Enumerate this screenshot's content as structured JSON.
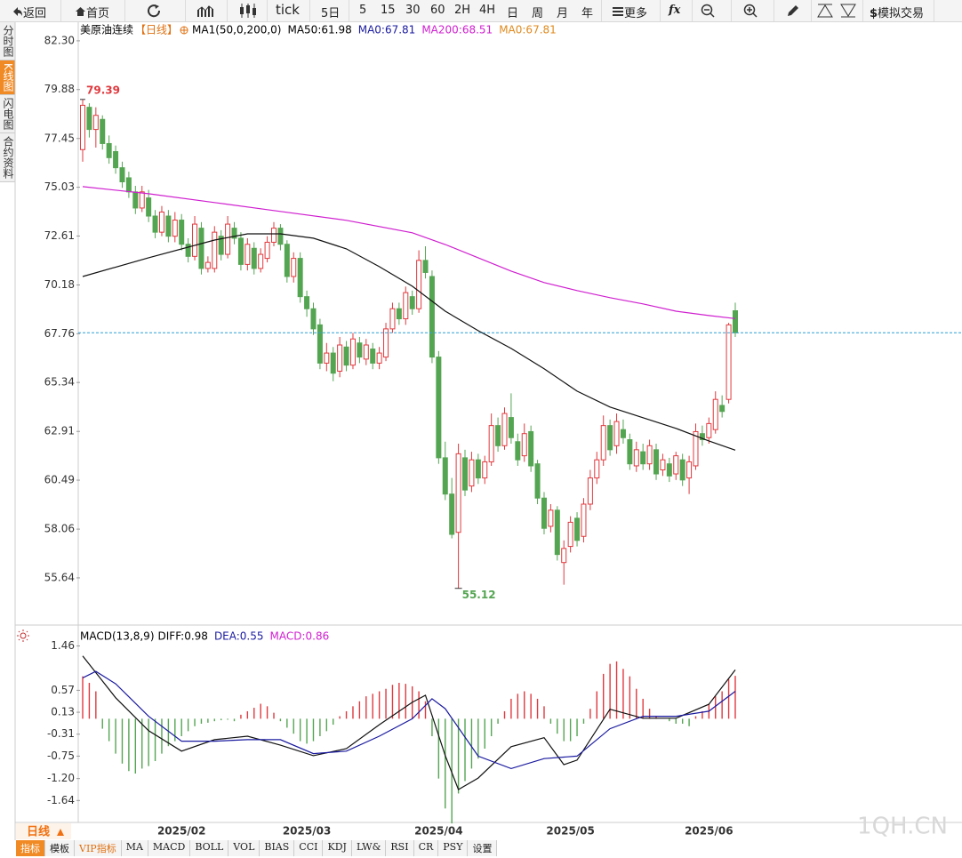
{
  "toolbar": [
    "返回",
    "首页",
    "tick",
    "5日",
    "5",
    "15",
    "30",
    "60",
    "2H",
    "4H",
    "日",
    "周",
    "月",
    "年",
    "更多",
    "fx",
    "模拟交易"
  ],
  "side_tabs": [
    "分时图",
    "K线图",
    "闪电图",
    "合约资料"
  ],
  "period": "日线",
  "bottom_tabs": [
    "指标",
    "模板",
    "VIP指标",
    "MA",
    "MACD",
    "BOLL",
    "VOL",
    "BIAS",
    "CCI",
    "KDJ",
    "LW&",
    "RSI",
    "CR",
    "PSY",
    "设置"
  ],
  "watermark": "1QH.CN",
  "chart_data": [
    {
      "type": "candlestick",
      "title": "美原油连续",
      "period_label": "【日线】",
      "legend": [
        {
          "text": "MA1(50,0,200,0)",
          "color": "#000000"
        },
        {
          "text": "MA50:61.98",
          "color": "#000000"
        },
        {
          "text": "MA0:67.81",
          "color": "#1a1aa0"
        },
        {
          "text": "MA200:68.51",
          "color": "#d020d0"
        },
        {
          "text": "MA0:67.81",
          "color": "#e08a1e"
        }
      ],
      "up_color": "#e0393e",
      "down_color": "#54a552",
      "categories": [
        null,
        null,
        null,
        null,
        null,
        null,
        null,
        null,
        null,
        null,
        null,
        null,
        null,
        null,
        null,
        "2025/02",
        null,
        null,
        null,
        null,
        null,
        null,
        null,
        null,
        null,
        null,
        null,
        null,
        null,
        null,
        null,
        null,
        null,
        null,
        "2025/03",
        null,
        null,
        null,
        null,
        null,
        null,
        null,
        null,
        null,
        null,
        null,
        null,
        null,
        null,
        null,
        null,
        null,
        null,
        null,
        "2025/04",
        null,
        null,
        null,
        null,
        null,
        null,
        null,
        null,
        null,
        null,
        null,
        null,
        null,
        null,
        null,
        null,
        null,
        null,
        null,
        "2025/05",
        null,
        null,
        null,
        null,
        null,
        null,
        null,
        null,
        null,
        null,
        null,
        null,
        null,
        null,
        null,
        null,
        null,
        null,
        null,
        null,
        "2025/06",
        null,
        null,
        null,
        null
      ],
      "open": [
        76.9,
        79.0,
        77.9,
        78.4,
        77.2,
        76.8,
        76.0,
        75.5,
        74.8,
        74.0,
        74.5,
        73.6,
        72.8,
        73.6,
        72.6,
        73.4,
        72.2,
        71.6,
        73.0,
        71.0,
        71.0,
        72.6,
        71.7,
        73.0,
        72.5,
        71.2,
        72.0,
        71.0,
        71.5,
        72.3,
        73.0,
        72.2,
        70.6,
        71.5,
        69.6,
        69.0,
        68.2,
        66.3,
        66.8,
        65.9,
        67.1,
        66.2,
        67.3,
        66.5,
        67.0,
        66.3,
        66.6,
        68.0,
        69.0,
        68.5,
        69.6,
        69.0,
        71.4,
        70.6,
        66.6,
        61.6,
        59.8,
        57.9,
        61.6,
        60.2,
        61.5,
        60.6,
        61.4,
        63.2,
        62.2,
        63.6,
        62.4,
        61.7,
        62.9,
        61.3,
        59.6,
        58.2,
        59.0,
        56.4,
        57.2,
        58.6,
        57.7,
        59.3,
        60.6,
        61.5,
        63.2,
        62.2,
        63.0,
        62.5,
        61.2,
        61.9,
        61.3,
        62.0,
        61.0,
        61.3,
        60.8,
        61.5,
        60.6,
        61.2,
        62.8,
        62.6,
        63.0,
        64.2,
        64.5,
        68.9
      ],
      "high": [
        79.39,
        79.2,
        79.0,
        78.6,
        77.6,
        77.1,
        76.3,
        75.8,
        75.1,
        75.1,
        74.9,
        73.9,
        74.1,
        73.9,
        73.8,
        73.7,
        72.5,
        73.6,
        73.3,
        71.6,
        73.1,
        72.9,
        73.6,
        73.3,
        72.8,
        72.5,
        72.3,
        72.0,
        72.6,
        73.3,
        73.2,
        72.4,
        71.8,
        71.8,
        69.9,
        69.3,
        68.5,
        67.3,
        67.1,
        67.6,
        67.4,
        67.8,
        67.6,
        67.5,
        67.3,
        67.1,
        68.3,
        69.3,
        69.3,
        70.1,
        69.9,
        71.9,
        72.1,
        70.9,
        66.9,
        62.4,
        60.6,
        62.3,
        62.0,
        61.9,
        61.8,
        61.7,
        63.8,
        63.6,
        64.1,
        64.8,
        62.8,
        63.3,
        63.2,
        61.5,
        59.9,
        59.3,
        59.2,
        57.5,
        58.7,
        58.9,
        59.6,
        61.0,
        61.9,
        63.7,
        63.5,
        63.8,
        63.5,
        62.8,
        62.4,
        62.3,
        62.5,
        62.3,
        61.8,
        61.6,
        61.9,
        61.8,
        61.7,
        63.3,
        63.2,
        63.6,
        64.9,
        64.7,
        68.3,
        69.3
      ],
      "low": [
        76.3,
        77.5,
        77.0,
        76.9,
        76.2,
        75.7,
        75.0,
        74.5,
        73.7,
        73.8,
        73.3,
        72.5,
        72.6,
        72.3,
        72.3,
        71.9,
        71.3,
        71.4,
        70.7,
        70.8,
        70.8,
        71.4,
        71.5,
        72.2,
        70.9,
        70.9,
        70.7,
        70.8,
        71.3,
        72.1,
        71.9,
        70.3,
        70.3,
        69.3,
        68.6,
        67.7,
        66.0,
        65.9,
        65.4,
        65.6,
        65.9,
        66.0,
        66.3,
        66.2,
        66.0,
        66.0,
        66.4,
        67.8,
        68.2,
        68.2,
        68.7,
        68.8,
        70.5,
        66.3,
        61.3,
        59.5,
        57.6,
        55.12,
        59.7,
        59.9,
        60.3,
        60.3,
        61.2,
        61.9,
        62.0,
        62.3,
        61.2,
        61.4,
        60.9,
        59.3,
        57.8,
        57.9,
        56.5,
        55.3,
        56.9,
        57.2,
        57.4,
        59.0,
        60.3,
        61.2,
        61.7,
        61.8,
        62.3,
        61.0,
        60.9,
        61.0,
        61.0,
        60.5,
        60.7,
        60.4,
        60.5,
        60.2,
        59.8,
        61.0,
        62.2,
        62.3,
        62.8,
        63.6,
        64.3,
        67.6
      ],
      "close": [
        79.1,
        77.9,
        78.6,
        77.2,
        76.5,
        76.0,
        75.3,
        74.8,
        74.0,
        74.8,
        73.6,
        72.8,
        73.8,
        72.6,
        73.4,
        72.2,
        71.6,
        73.2,
        71.0,
        71.3,
        72.8,
        71.7,
        73.2,
        72.5,
        71.2,
        72.2,
        71.0,
        71.7,
        72.3,
        73.0,
        72.2,
        70.6,
        71.5,
        69.6,
        69.0,
        68.0,
        66.3,
        66.8,
        65.8,
        67.2,
        66.2,
        67.5,
        66.6,
        67.2,
        66.3,
        66.8,
        68.0,
        69.0,
        68.5,
        69.8,
        69.0,
        71.4,
        70.8,
        66.6,
        61.6,
        59.8,
        57.8,
        61.8,
        60.0,
        61.5,
        60.6,
        61.4,
        63.2,
        62.2,
        63.8,
        62.6,
        61.5,
        62.8,
        61.2,
        59.6,
        58.1,
        59.0,
        56.8,
        57.1,
        58.4,
        57.5,
        59.3,
        60.6,
        61.5,
        63.2,
        62.0,
        63.4,
        62.6,
        61.3,
        62.0,
        61.3,
        62.2,
        60.8,
        61.5,
        60.7,
        61.7,
        60.5,
        61.4,
        62.9,
        62.5,
        63.3,
        64.5,
        63.9,
        68.2,
        67.81
      ],
      "lines": [
        {
          "name": "MA50",
          "color": "#111111",
          "x": [
            0,
            10,
            20,
            25,
            30,
            35,
            40,
            45,
            50,
            55,
            60,
            65,
            70,
            75,
            80,
            85,
            90,
            95,
            99
          ],
          "values": [
            70.6,
            71.53,
            72.41,
            72.72,
            72.72,
            72.5,
            71.97,
            71.09,
            70.12,
            68.88,
            67.91,
            67.03,
            66.02,
            64.91,
            64.12,
            63.59,
            63.06,
            62.44,
            61.98
          ]
        },
        {
          "name": "MA200",
          "color": "#d020d0",
          "x": [
            0,
            10,
            20,
            30,
            40,
            50,
            55,
            60,
            65,
            70,
            75,
            80,
            85,
            90,
            95,
            99
          ],
          "values": [
            75.06,
            74.71,
            74.27,
            73.83,
            73.39,
            72.77,
            72.19,
            71.53,
            70.87,
            70.3,
            69.9,
            69.55,
            69.24,
            68.88,
            68.66,
            68.51
          ]
        }
      ],
      "price_line_color": "#2a9fd6",
      "ylim": [
        53.43,
        83.09
      ],
      "yticks": [
        {
          "value": 82.3,
          "label": "82.30"
        },
        79.88,
        77.45,
        75.03,
        72.61,
        70.18,
        67.76,
        65.34,
        62.91,
        60.49,
        58.06,
        55.64
      ]
    },
    {
      "type": "macd",
      "title": "MACD(13,8,9)",
      "legend": [
        {
          "text": "DIFF:0.98",
          "color": "#000000"
        },
        {
          "text": "DEA:0.55",
          "color": "#1a1aa0"
        },
        {
          "text": "MACD:0.86",
          "color": "#d020d0"
        }
      ],
      "up_color": "#e0393e",
      "down_color": "#54a552",
      "histogram": [
        0.85,
        0.72,
        0.55,
        -0.2,
        -0.45,
        -0.7,
        -0.9,
        -1.05,
        -1.1,
        -1.0,
        -0.95,
        -0.85,
        -0.7,
        -0.55,
        -0.45,
        -0.35,
        -0.25,
        -0.15,
        -0.1,
        -0.08,
        -0.05,
        -0.03,
        -0.02,
        -0.05,
        0.08,
        0.15,
        0.22,
        0.3,
        0.25,
        0.12,
        -0.05,
        -0.18,
        -0.3,
        -0.45,
        -0.5,
        -0.45,
        -0.35,
        -0.25,
        -0.12,
        0.05,
        0.15,
        0.25,
        0.35,
        0.45,
        0.5,
        0.55,
        0.6,
        0.68,
        0.72,
        0.7,
        0.65,
        0.55,
        0.35,
        -0.35,
        -1.2,
        -1.8,
        -2.1,
        -1.5,
        -1.25,
        -1.0,
        -0.8,
        -0.6,
        -0.35,
        -0.1,
        0.15,
        0.4,
        0.5,
        0.55,
        0.5,
        0.4,
        0.25,
        -0.1,
        -0.3,
        -0.45,
        -0.45,
        -0.35,
        -0.1,
        0.2,
        0.55,
        0.9,
        1.1,
        1.15,
        1.0,
        0.85,
        0.6,
        0.4,
        0.2,
        0.05,
        0,
        -0.05,
        -0.1,
        -0.1,
        -0.15,
        0.05,
        0.15,
        0.3,
        0.45,
        0.55,
        0.8,
        0.86
      ],
      "series": [
        {
          "name": "DIFF",
          "color": "#111111",
          "x": [
            0,
            5,
            10,
            15,
            20,
            25,
            30,
            35,
            40,
            45,
            50,
            52,
            55,
            57,
            60,
            65,
            70,
            73,
            75,
            80,
            85,
            90,
            95,
            99
          ],
          "values": [
            1.26,
            0.42,
            -0.24,
            -0.65,
            -0.42,
            -0.35,
            -0.53,
            -0.74,
            -0.6,
            -0.12,
            0.33,
            0.47,
            -0.74,
            -1.42,
            -1.19,
            -0.56,
            -0.38,
            -0.92,
            -0.83,
            0.19,
            0.01,
            0.01,
            0.29,
            0.98
          ]
        },
        {
          "name": "DEA",
          "color": "#1a1aa0",
          "x": [
            0,
            2,
            5,
            10,
            15,
            20,
            25,
            30,
            35,
            40,
            45,
            50,
            53,
            55,
            60,
            65,
            70,
            75,
            80,
            85,
            90,
            95,
            99
          ],
          "values": [
            0.82,
            0.95,
            0.7,
            0.05,
            -0.45,
            -0.45,
            -0.42,
            -0.42,
            -0.7,
            -0.65,
            -0.35,
            0,
            0.4,
            0.2,
            -0.75,
            -1.0,
            -0.8,
            -0.75,
            -0.2,
            0.05,
            0.05,
            0.15,
            0.55
          ]
        }
      ],
      "ylim": [
        -2.08,
        1.54
      ],
      "yticks": [
        1.46,
        0.57,
        0.13,
        -0.31,
        -0.75,
        {
          "value": -1.2,
          "label": "-1.20"
        },
        -1.64
      ]
    }
  ]
}
